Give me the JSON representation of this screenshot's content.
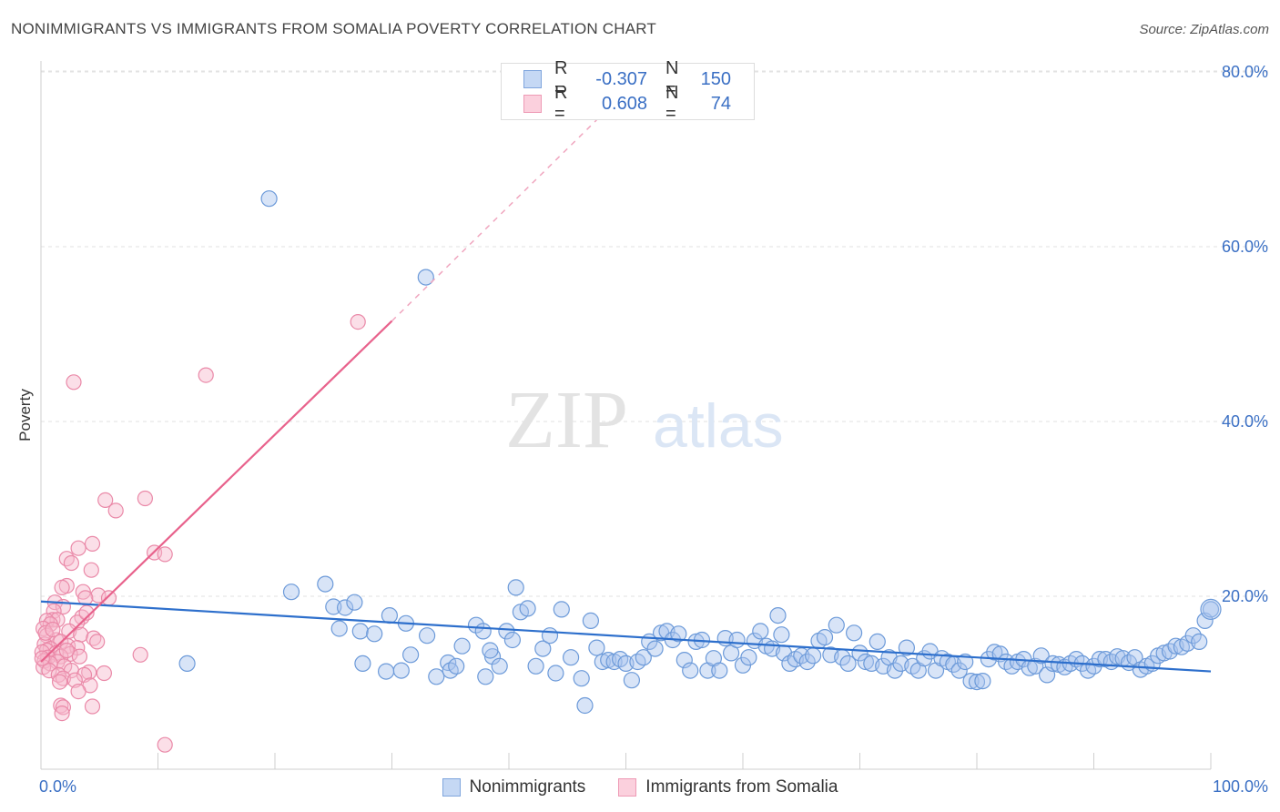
{
  "header": {
    "title": "NONIMMIGRANTS VS IMMIGRANTS FROM SOMALIA POVERTY CORRELATION CHART",
    "source": "Source: ZipAtlas.com"
  },
  "watermark": {
    "zip": "ZIP",
    "atlas": "atlas"
  },
  "stats_legend": [
    {
      "r_label": "R =",
      "r_value": "-0.307",
      "n_label": "N =",
      "n_value": "150",
      "color": "#a9c4ee"
    },
    {
      "r_label": "R =",
      "r_value": "0.608",
      "n_label": "N =",
      "n_value": "74",
      "color": "#f6b8cb"
    }
  ],
  "chart_data": {
    "type": "scatter",
    "xlabel": "",
    "ylabel": "Poverty",
    "xlim": [
      0,
      100
    ],
    "ylim": [
      0,
      82
    ],
    "x_tick_labels": [
      "0.0%",
      "100.0%"
    ],
    "y_ticks": [
      20,
      40,
      60,
      80
    ],
    "y_tick_labels": [
      "20.0%",
      "40.0%",
      "60.0%",
      "80.0%"
    ],
    "grid": true,
    "legend_position": "bottom-center",
    "series": [
      {
        "name": "Nonimmigrants",
        "color": "#a9c4ee",
        "stroke": "#6c9ad9",
        "trend_color": "#2d6fcc",
        "trend": {
          "x": [
            0,
            100
          ],
          "y": [
            19.4,
            11.4
          ]
        },
        "points": [
          [
            19.5,
            65.5
          ],
          [
            32.9,
            56.5
          ],
          [
            12.5,
            12.3
          ],
          [
            21.4,
            20.5
          ],
          [
            24.3,
            21.4
          ],
          [
            25,
            18.8
          ],
          [
            25.5,
            16.3
          ],
          [
            26,
            18.7
          ],
          [
            26.8,
            19.3
          ],
          [
            27.5,
            12.3
          ],
          [
            27.3,
            16
          ],
          [
            28.5,
            15.7
          ],
          [
            29.5,
            11.4
          ],
          [
            29.8,
            17.8
          ],
          [
            30.8,
            11.5
          ],
          [
            31.2,
            16.9
          ],
          [
            31.6,
            13.3
          ],
          [
            33,
            15.5
          ],
          [
            33.8,
            10.8
          ],
          [
            34.8,
            12.4
          ],
          [
            35,
            11.5
          ],
          [
            35.5,
            12
          ],
          [
            36,
            14.3
          ],
          [
            37.2,
            16.7
          ],
          [
            37.8,
            16
          ],
          [
            38,
            10.8
          ],
          [
            38.6,
            13.1
          ],
          [
            39.2,
            12
          ],
          [
            39.8,
            16
          ],
          [
            40.3,
            15
          ],
          [
            40.6,
            21
          ],
          [
            41,
            18.2
          ],
          [
            41.6,
            18.6
          ],
          [
            42.3,
            12
          ],
          [
            42.9,
            14
          ],
          [
            43.5,
            15.5
          ],
          [
            44,
            11.2
          ],
          [
            44.5,
            18.5
          ],
          [
            45.3,
            13
          ],
          [
            46.2,
            10.6
          ],
          [
            46.5,
            7.5
          ],
          [
            47,
            17.2
          ],
          [
            47.5,
            14.1
          ],
          [
            48,
            12.5
          ],
          [
            48.5,
            12.7
          ],
          [
            49,
            12.5
          ],
          [
            49.5,
            12.8
          ],
          [
            50,
            12.3
          ],
          [
            50.5,
            10.4
          ],
          [
            51,
            12.5
          ],
          [
            51.5,
            13
          ],
          [
            52,
            14.8
          ],
          [
            52.5,
            14
          ],
          [
            53,
            15.8
          ],
          [
            53.5,
            16
          ],
          [
            54,
            15
          ],
          [
            54.5,
            15.7
          ],
          [
            55,
            12.7
          ],
          [
            55.5,
            11.5
          ],
          [
            56,
            14.8
          ],
          [
            56.5,
            15
          ],
          [
            57,
            11.5
          ],
          [
            57.5,
            12.9
          ],
          [
            58,
            11.5
          ],
          [
            58.5,
            15.2
          ],
          [
            59,
            13.5
          ],
          [
            59.5,
            15
          ],
          [
            60,
            12.1
          ],
          [
            60.5,
            13
          ],
          [
            61,
            14.9
          ],
          [
            61.5,
            16
          ],
          [
            62,
            14.3
          ],
          [
            62.5,
            14
          ],
          [
            63,
            17.8
          ],
          [
            63.5,
            13.5
          ],
          [
            64,
            12.3
          ],
          [
            64.5,
            12.8
          ],
          [
            65,
            13.2
          ],
          [
            65.5,
            12.5
          ],
          [
            66,
            13.2
          ],
          [
            66.5,
            14.9
          ],
          [
            67,
            15.3
          ],
          [
            67.5,
            13.3
          ],
          [
            68,
            16.7
          ],
          [
            68.5,
            13
          ],
          [
            69,
            12.3
          ],
          [
            69.5,
            15.8
          ],
          [
            70,
            13.5
          ],
          [
            70.5,
            12.5
          ],
          [
            71,
            12.3
          ],
          [
            71.5,
            14.8
          ],
          [
            72,
            12
          ],
          [
            72.5,
            13
          ],
          [
            73,
            11.5
          ],
          [
            73.5,
            12.3
          ],
          [
            74,
            14.1
          ],
          [
            74.5,
            12
          ],
          [
            75,
            11.5
          ],
          [
            75.5,
            12.9
          ],
          [
            76,
            13.7
          ],
          [
            76.5,
            11.5
          ],
          [
            77,
            12.9
          ],
          [
            77.5,
            12.5
          ],
          [
            78,
            12.2
          ],
          [
            78.5,
            11.5
          ],
          [
            79,
            12.5
          ],
          [
            79.5,
            10.3
          ],
          [
            80,
            10.2
          ],
          [
            80.5,
            10.3
          ],
          [
            81,
            12.8
          ],
          [
            81.5,
            13.6
          ],
          [
            82,
            13.4
          ],
          [
            82.5,
            12.5
          ],
          [
            83,
            12
          ],
          [
            83.5,
            12.5
          ],
          [
            84,
            12.8
          ],
          [
            84.5,
            11.8
          ],
          [
            85,
            12
          ],
          [
            85.5,
            13.2
          ],
          [
            86,
            11
          ],
          [
            86.5,
            12.3
          ],
          [
            87,
            12.2
          ],
          [
            87.5,
            11.9
          ],
          [
            88,
            12.3
          ],
          [
            88.5,
            12.8
          ],
          [
            89,
            12.3
          ],
          [
            89.5,
            11.5
          ],
          [
            90,
            12
          ],
          [
            90.5,
            12.8
          ],
          [
            91,
            12.8
          ],
          [
            91.5,
            12.5
          ],
          [
            92,
            13.1
          ],
          [
            92.5,
            12.9
          ],
          [
            93,
            12.4
          ],
          [
            93.5,
            13
          ],
          [
            94,
            11.6
          ],
          [
            94.5,
            12
          ],
          [
            95,
            12.3
          ],
          [
            95.5,
            13.2
          ],
          [
            96,
            13.5
          ],
          [
            96.5,
            13.7
          ],
          [
            97,
            14.3
          ],
          [
            97.5,
            14.2
          ],
          [
            98,
            14.6
          ],
          [
            98.5,
            15.5
          ],
          [
            99,
            14.8
          ],
          [
            99.5,
            17.2
          ],
          [
            100,
            18.5
          ],
          [
            38.4,
            13.8
          ],
          [
            63.3,
            15.6
          ]
        ]
      },
      {
        "name": "Immigrants from Somalia",
        "color": "#f6b8cb",
        "stroke": "#ea89a8",
        "trend_color": "#e8628c",
        "trend": {
          "x": [
            0,
            30
          ],
          "y": [
            12.5,
            51.5
          ]
        },
        "trend_extension": {
          "x": [
            30,
            47.5
          ],
          "y": [
            51.5,
            74.5
          ]
        },
        "points": [
          [
            27.1,
            51.4
          ],
          [
            14.1,
            45.3
          ],
          [
            2.8,
            44.5
          ],
          [
            8.9,
            31.2
          ],
          [
            5.5,
            31
          ],
          [
            6.4,
            29.8
          ],
          [
            4.4,
            26
          ],
          [
            3.2,
            25.5
          ],
          [
            9.7,
            25
          ],
          [
            10.6,
            24.8
          ],
          [
            2.2,
            24.3
          ],
          [
            2.6,
            23.8
          ],
          [
            4.3,
            23
          ],
          [
            2.2,
            21.2
          ],
          [
            1.8,
            21
          ],
          [
            3.6,
            20.5
          ],
          [
            4.9,
            20.1
          ],
          [
            5.8,
            19.8
          ],
          [
            1.2,
            19.3
          ],
          [
            3.8,
            19.8
          ],
          [
            1.9,
            18.8
          ],
          [
            1.1,
            18.3
          ],
          [
            3.5,
            17.6
          ],
          [
            1,
            17.3
          ],
          [
            1.4,
            17.3
          ],
          [
            0.5,
            17.2
          ],
          [
            3.1,
            17
          ],
          [
            0.8,
            16.8
          ],
          [
            0.2,
            16.3
          ],
          [
            2.4,
            16
          ],
          [
            0.5,
            15.5
          ],
          [
            3.4,
            15.6
          ],
          [
            4.5,
            15.2
          ],
          [
            1.3,
            15
          ],
          [
            1.7,
            14.8
          ],
          [
            0.3,
            14.5
          ],
          [
            2.3,
            14.3
          ],
          [
            0.8,
            14
          ],
          [
            3.1,
            14.1
          ],
          [
            0.5,
            13.8
          ],
          [
            0.1,
            13.6
          ],
          [
            1.3,
            13.5
          ],
          [
            2.5,
            13.4
          ],
          [
            1.7,
            13.1
          ],
          [
            0.6,
            13
          ],
          [
            3.3,
            13.1
          ],
          [
            8.5,
            13.3
          ],
          [
            0.3,
            12.6
          ],
          [
            1.4,
            12.5
          ],
          [
            0.8,
            12.3
          ],
          [
            2,
            12
          ],
          [
            0.2,
            11.9
          ],
          [
            0.7,
            11.5
          ],
          [
            2.6,
            11.5
          ],
          [
            4.1,
            11.3
          ],
          [
            5.4,
            11.2
          ],
          [
            1.5,
            11
          ],
          [
            3.7,
            11
          ],
          [
            1.9,
            10.6
          ],
          [
            2.9,
            10.4
          ],
          [
            1.6,
            10.2
          ],
          [
            4.2,
            9.8
          ],
          [
            3.2,
            9.1
          ],
          [
            1.7,
            7.5
          ],
          [
            1.9,
            7.3
          ],
          [
            4.4,
            7.4
          ],
          [
            1.8,
            6.6
          ],
          [
            10.6,
            3
          ],
          [
            0.4,
            15.8
          ],
          [
            1,
            16.2
          ],
          [
            3.9,
            18.1
          ],
          [
            0.1,
            12.9
          ],
          [
            2.2,
            13.8
          ],
          [
            4.8,
            14.8
          ]
        ]
      }
    ]
  }
}
